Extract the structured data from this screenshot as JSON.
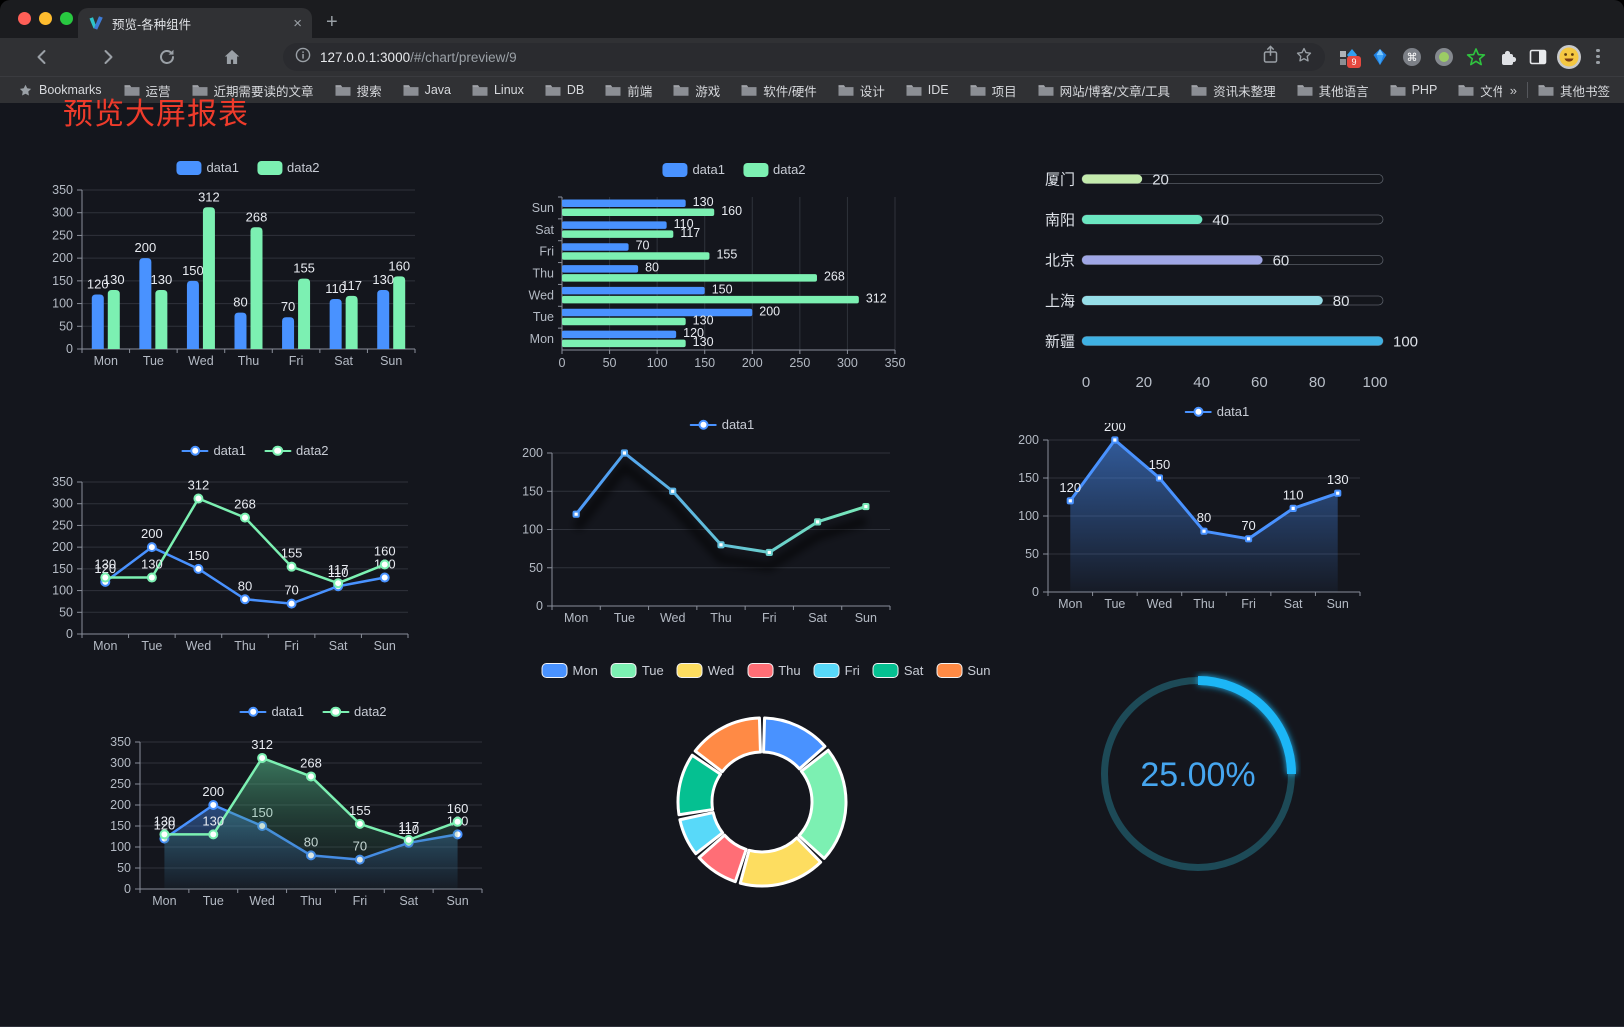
{
  "style": {
    "page_bg": "#14161d",
    "axis_text": "#b4bac4",
    "axis_line": "#8a8f9a",
    "grid": "#2f323b",
    "label": "#e8ebf1",
    "legend_text": "#c8ccd5"
  },
  "browser": {
    "tab": {
      "title": "预览-各种组件",
      "close_glyph": "×"
    },
    "new_tab_glyph": "+",
    "url": {
      "host": "127.0.0.1:3000",
      "path": "/#/chart/preview/9"
    },
    "extension_badge": "9",
    "bookmarks_label": "Bookmarks",
    "bookmarks": [
      "运营",
      "近期需要读的文章",
      "搜索",
      "Java",
      "Linux",
      "DB",
      "前端",
      "游戏",
      "软件/硬件",
      "设计",
      "IDE",
      "项目",
      "网站/博客/文章/工具",
      "资讯未整理",
      "其他语言",
      "PHP",
      "文件服务器"
    ],
    "overflow_label": "»",
    "other_bookmarks_label": "其他书签"
  },
  "page": {
    "title": "预览大屏报表",
    "title_color": "#ee3b2b"
  },
  "chart_data": [
    {
      "id": "bar-grouped",
      "type": "bar",
      "categories": [
        "Mon",
        "Tue",
        "Wed",
        "Thu",
        "Fri",
        "Sat",
        "Sun"
      ],
      "series": [
        {
          "name": "data1",
          "color": "#4992ff",
          "values": [
            120,
            200,
            150,
            80,
            70,
            110,
            130
          ]
        },
        {
          "name": "data2",
          "color": "#7cf0b2",
          "values": [
            130,
            130,
            312,
            268,
            155,
            117,
            160
          ]
        }
      ],
      "ylim": [
        0,
        350
      ],
      "ytick_step": 50,
      "legend_position": "top",
      "value_labels": true,
      "grid": true
    },
    {
      "id": "bar-horizontal",
      "type": "bar",
      "orientation": "horizontal",
      "categories": [
        "Mon",
        "Tue",
        "Wed",
        "Thu",
        "Fri",
        "Sat",
        "Sun"
      ],
      "category_order_top_to_bottom": [
        "Sun",
        "Sat",
        "Fri",
        "Thu",
        "Wed",
        "Tue",
        "Mon"
      ],
      "series": [
        {
          "name": "data1",
          "color": "#4992ff",
          "values": [
            120,
            200,
            150,
            80,
            70,
            110,
            130
          ]
        },
        {
          "name": "data2",
          "color": "#7cf0b2",
          "values": [
            130,
            130,
            312,
            268,
            155,
            117,
            160
          ]
        }
      ],
      "xlim": [
        0,
        350
      ],
      "xtick_step": 50,
      "legend_position": "top",
      "value_labels": true,
      "grid": true
    },
    {
      "id": "progress-list",
      "type": "bar",
      "orientation": "horizontal",
      "variant": "progress",
      "items": [
        {
          "label": "厦门",
          "value": 20,
          "color": "#c4ebad"
        },
        {
          "label": "南阳",
          "value": 40,
          "color": "#6be6c1"
        },
        {
          "label": "北京",
          "value": 60,
          "color": "#a0a7e6"
        },
        {
          "label": "上海",
          "value": 80,
          "color": "#96dee8"
        },
        {
          "label": "新疆",
          "value": 100,
          "color": "#3fb1e3"
        }
      ],
      "xlim": [
        0,
        100
      ],
      "xticks": [
        0,
        20,
        40,
        60,
        80,
        100
      ]
    },
    {
      "id": "line-grouped",
      "type": "line",
      "categories": [
        "Mon",
        "Tue",
        "Wed",
        "Thu",
        "Fri",
        "Sat",
        "Sun"
      ],
      "series": [
        {
          "name": "data1",
          "color": "#4992ff",
          "values": [
            120,
            200,
            150,
            80,
            70,
            110,
            130
          ]
        },
        {
          "name": "data2",
          "color": "#7cf0b2",
          "values": [
            130,
            130,
            312,
            268,
            155,
            117,
            160
          ]
        }
      ],
      "ylim": [
        0,
        350
      ],
      "ytick_step": 50,
      "legend_position": "top",
      "value_labels": true,
      "grid": true
    },
    {
      "id": "line-gradient",
      "type": "line",
      "categories": [
        "Mon",
        "Tue",
        "Wed",
        "Thu",
        "Fri",
        "Sat",
        "Sun"
      ],
      "series": [
        {
          "name": "data1",
          "color": "#4992ff",
          "color_gradient": [
            "#4992ff",
            "#7cf0b2"
          ],
          "values": [
            120,
            200,
            150,
            80,
            70,
            110,
            130
          ]
        }
      ],
      "ylim": [
        0,
        200
      ],
      "ytick_step": 50,
      "legend_position": "top",
      "value_labels": false,
      "shadow": true,
      "grid": true
    },
    {
      "id": "area-single",
      "type": "area",
      "categories": [
        "Mon",
        "Tue",
        "Wed",
        "Thu",
        "Fri",
        "Sat",
        "Sun"
      ],
      "series": [
        {
          "name": "data1",
          "color": "#4992ff",
          "fill_gradient": [
            "rgba(73,146,255,0.55)",
            "rgba(73,146,255,0.04)"
          ],
          "values": [
            120,
            200,
            150,
            80,
            70,
            110,
            130
          ]
        }
      ],
      "ylim": [
        0,
        200
      ],
      "ytick_step": 50,
      "legend_position": "top",
      "value_labels": true,
      "grid": true
    },
    {
      "id": "area-grouped",
      "type": "area",
      "categories": [
        "Mon",
        "Tue",
        "Wed",
        "Thu",
        "Fri",
        "Sat",
        "Sun"
      ],
      "series": [
        {
          "name": "data1",
          "color": "#4992ff",
          "fill_gradient": [
            "rgba(73,146,255,0.42)",
            "rgba(73,146,255,0.03)"
          ],
          "values": [
            120,
            200,
            150,
            80,
            70,
            110,
            130
          ]
        },
        {
          "name": "data2",
          "color": "#7cf0b2",
          "fill_gradient": [
            "rgba(96,216,158,0.5)",
            "rgba(30,70,50,0.05)"
          ],
          "values": [
            130,
            130,
            312,
            268,
            155,
            117,
            160
          ]
        }
      ],
      "ylim": [
        0,
        350
      ],
      "ytick_step": 50,
      "legend_position": "top",
      "value_labels": true,
      "grid": true
    },
    {
      "id": "donut",
      "type": "pie",
      "donut": true,
      "border_color": "#ffffff",
      "slices": [
        {
          "label": "Mon",
          "value": 120,
          "color": "#4992ff"
        },
        {
          "label": "Tue",
          "value": 200,
          "color": "#7cf0b2"
        },
        {
          "label": "Wed",
          "value": 150,
          "color": "#fddd60"
        },
        {
          "label": "Thu",
          "value": 80,
          "color": "#ff6e76"
        },
        {
          "label": "Fri",
          "value": 70,
          "color": "#58d9f9"
        },
        {
          "label": "Sat",
          "value": 110,
          "color": "#05c091"
        },
        {
          "label": "Sun",
          "value": 130,
          "color": "#ff8a45"
        }
      ]
    },
    {
      "id": "gauge",
      "type": "gauge",
      "percent": 25,
      "value_label": "25.00%",
      "arc_color": "#1fb6f6",
      "track_color": "#1d4a57",
      "text_color": "#46a6ef"
    }
  ]
}
